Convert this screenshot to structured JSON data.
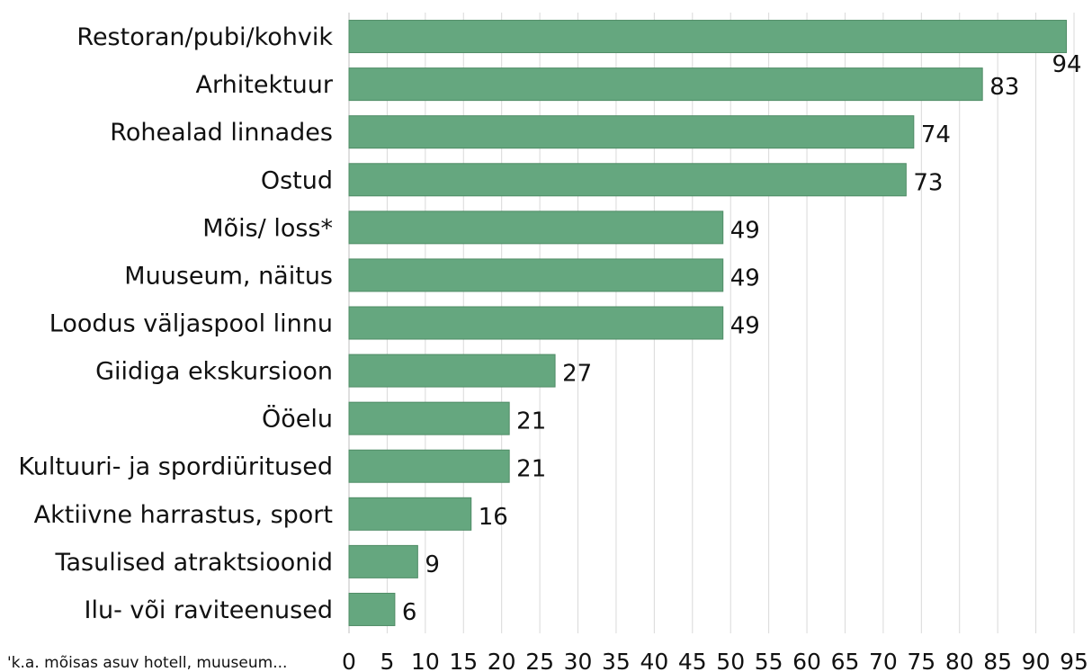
{
  "chart_data": {
    "type": "barh",
    "categories": [
      "Restoran/pubi/kohvik",
      "Arhitektuur",
      "Rohealad linnades",
      "Ostud",
      "Mõis/ loss*",
      "Muuseum, näitus",
      "Loodus väljaspool linnu",
      "Giidiga ekskursioon",
      "Ööelu",
      "Kultuuri- ja spordiüritused",
      "Aktiivne harrastus, sport",
      "Tasulised atraktsioonid",
      "Ilu- või raviteenused"
    ],
    "values": [
      94,
      83,
      74,
      73,
      49,
      49,
      49,
      27,
      21,
      21,
      16,
      9,
      6
    ],
    "color": "#65a77f",
    "xlim": [
      0,
      95
    ],
    "xticks": [
      0,
      5,
      10,
      15,
      20,
      25,
      30,
      35,
      40,
      45,
      50,
      55,
      60,
      65,
      70,
      75,
      80,
      85,
      90,
      95
    ],
    "grid": true,
    "footnote": "'k.a. mõisas asuv hotell,  muuseum..."
  }
}
